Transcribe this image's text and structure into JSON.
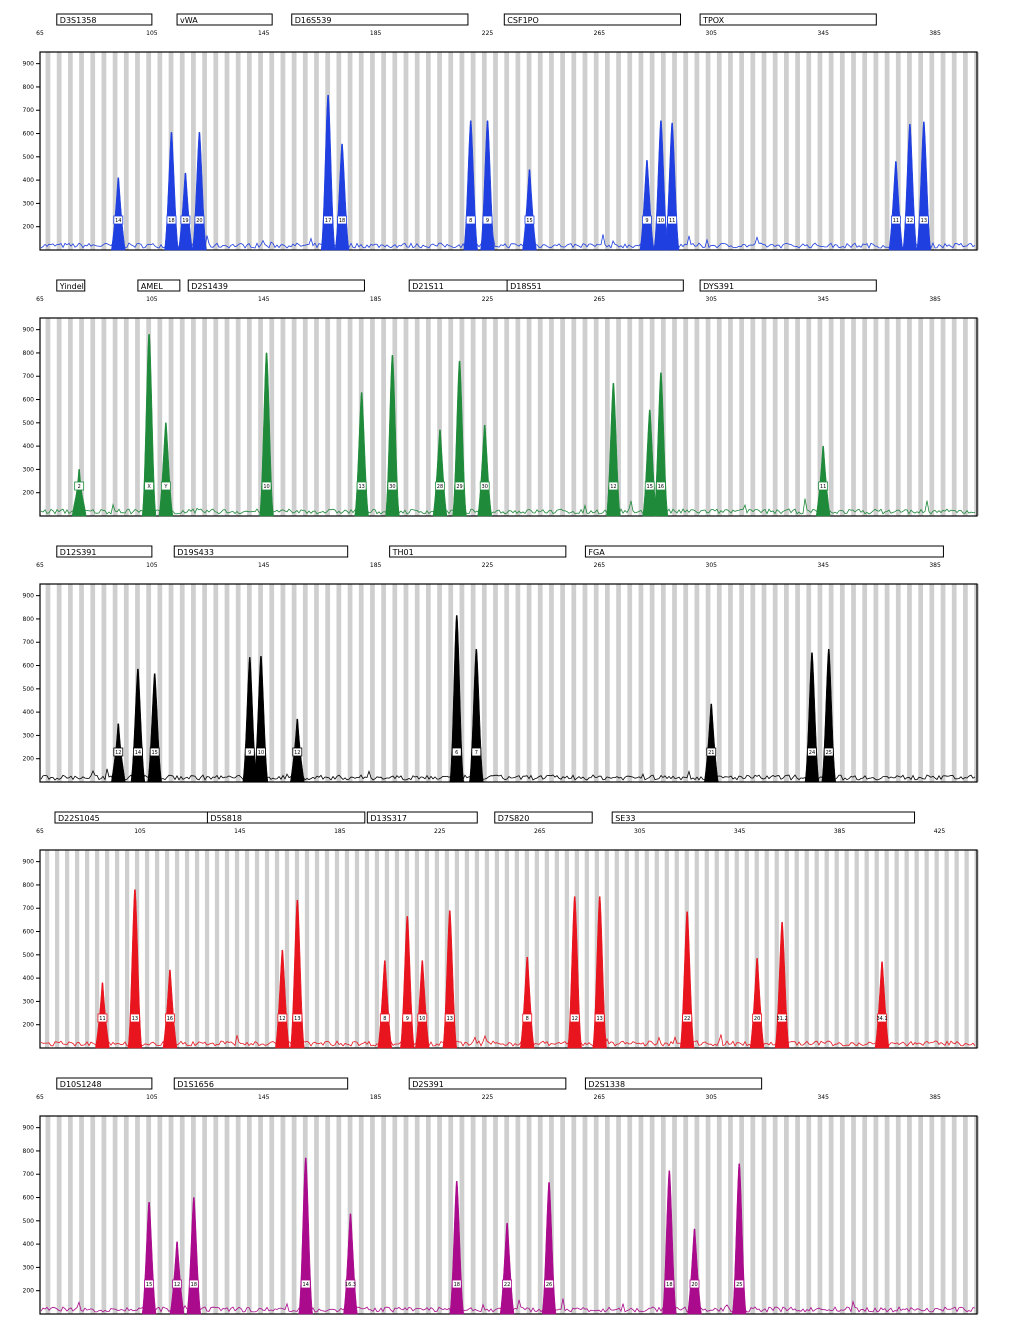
{
  "chart_data": [
    {
      "type": "area",
      "color": "#1f3fe0",
      "x_ticks": [
        65,
        105,
        145,
        185,
        225,
        265,
        305,
        345,
        385
      ],
      "y_ticks": [
        200,
        300,
        400,
        500,
        600,
        700,
        800,
        900
      ],
      "xlim": [
        65,
        400
      ],
      "ylim": [
        100,
        950
      ],
      "loci": [
        {
          "name": "D3S1358",
          "start": 71,
          "end": 105
        },
        {
          "name": "vWA",
          "start": 114,
          "end": 148
        },
        {
          "name": "D16S539",
          "start": 155,
          "end": 218
        },
        {
          "name": "CSF1PO",
          "start": 231,
          "end": 294
        },
        {
          "name": "TPOX",
          "start": 301,
          "end": 364
        }
      ],
      "peaks": [
        {
          "x": 93,
          "height": 410,
          "allele": "14"
        },
        {
          "x": 112,
          "height": 605,
          "allele": "18"
        },
        {
          "x": 117,
          "height": 430,
          "allele": "19"
        },
        {
          "x": 122,
          "height": 605,
          "allele": "20"
        },
        {
          "x": 168,
          "height": 765,
          "allele": "17"
        },
        {
          "x": 173,
          "height": 555,
          "allele": "18"
        },
        {
          "x": 219,
          "height": 655,
          "allele": "8"
        },
        {
          "x": 225,
          "height": 655,
          "allele": "9"
        },
        {
          "x": 240,
          "height": 445,
          "allele": "15"
        },
        {
          "x": 282,
          "height": 485,
          "allele": "9"
        },
        {
          "x": 287,
          "height": 655,
          "allele": "10"
        },
        {
          "x": 291,
          "height": 645,
          "allele": "11"
        },
        {
          "x": 371,
          "height": 480,
          "allele": "11"
        },
        {
          "x": 376,
          "height": 640,
          "allele": "12"
        },
        {
          "x": 381,
          "height": 650,
          "allele": "13"
        }
      ]
    },
    {
      "type": "area",
      "color": "#1e8a3a",
      "x_ticks": [
        65,
        105,
        145,
        185,
        225,
        265,
        305,
        345,
        385
      ],
      "y_ticks": [
        200,
        300,
        400,
        500,
        600,
        700,
        800,
        900
      ],
      "xlim": [
        65,
        400
      ],
      "ylim": [
        100,
        950
      ],
      "loci": [
        {
          "name": "Yindel",
          "start": 71,
          "end": 81
        },
        {
          "name": "AMEL",
          "start": 100,
          "end": 115
        },
        {
          "name": "D2S1439",
          "start": 118,
          "end": 181
        },
        {
          "name": "D21S11",
          "start": 197,
          "end": 235
        },
        {
          "name": "D18S51",
          "start": 232,
          "end": 295
        },
        {
          "name": "DYS391",
          "start": 301,
          "end": 364
        }
      ],
      "peaks": [
        {
          "x": 79,
          "height": 300,
          "allele": "2"
        },
        {
          "x": 104,
          "height": 880,
          "allele": "X"
        },
        {
          "x": 110,
          "height": 500,
          "allele": "Y"
        },
        {
          "x": 146,
          "height": 800,
          "allele": "10"
        },
        {
          "x": 180,
          "height": 630,
          "allele": "13"
        },
        {
          "x": 191,
          "height": 790,
          "allele": "30"
        },
        {
          "x": 208,
          "height": 470,
          "allele": "28"
        },
        {
          "x": 215,
          "height": 765,
          "allele": "29"
        },
        {
          "x": 224,
          "height": 490,
          "allele": "30"
        },
        {
          "x": 270,
          "height": 670,
          "allele": "12"
        },
        {
          "x": 283,
          "height": 555,
          "allele": "15"
        },
        {
          "x": 287,
          "height": 715,
          "allele": "16"
        },
        {
          "x": 345,
          "height": 400,
          "allele": "11"
        }
      ]
    },
    {
      "type": "area",
      "color": "#000000",
      "x_ticks": [
        65,
        105,
        145,
        185,
        225,
        265,
        305,
        345,
        385
      ],
      "y_ticks": [
        200,
        300,
        400,
        500,
        600,
        700,
        800,
        900
      ],
      "xlim": [
        65,
        400
      ],
      "ylim": [
        100,
        950
      ],
      "loci": [
        {
          "name": "D12S391",
          "start": 71,
          "end": 105
        },
        {
          "name": "D19S433",
          "start": 113,
          "end": 175
        },
        {
          "name": "TH01",
          "start": 190,
          "end": 253
        },
        {
          "name": "FGA",
          "start": 260,
          "end": 388
        }
      ],
      "peaks": [
        {
          "x": 93,
          "height": 350,
          "allele": "12"
        },
        {
          "x": 100,
          "height": 585,
          "allele": "14"
        },
        {
          "x": 106,
          "height": 565,
          "allele": "15"
        },
        {
          "x": 140,
          "height": 635,
          "allele": "9"
        },
        {
          "x": 144,
          "height": 640,
          "allele": "10"
        },
        {
          "x": 157,
          "height": 370,
          "allele": "12"
        },
        {
          "x": 214,
          "height": 815,
          "allele": "6"
        },
        {
          "x": 221,
          "height": 670,
          "allele": "7"
        },
        {
          "x": 305,
          "height": 435,
          "allele": "21"
        },
        {
          "x": 341,
          "height": 655,
          "allele": "24"
        },
        {
          "x": 347,
          "height": 670,
          "allele": "25"
        }
      ]
    },
    {
      "type": "area",
      "color": "#e8141e",
      "x_ticks": [
        65,
        105,
        145,
        185,
        225,
        265,
        305,
        345,
        385,
        425
      ],
      "y_ticks": [
        200,
        300,
        400,
        500,
        600,
        700,
        800,
        900
      ],
      "xlim": [
        65,
        440
      ],
      "ylim": [
        100,
        950
      ],
      "loci": [
        {
          "name": "D22S1045",
          "start": 71,
          "end": 135
        },
        {
          "name": "D5S818",
          "start": 132,
          "end": 195
        },
        {
          "name": "D13S317",
          "start": 196,
          "end": 240
        },
        {
          "name": "D7S820",
          "start": 247,
          "end": 286
        },
        {
          "name": "SE33",
          "start": 294,
          "end": 415
        }
      ],
      "peaks": [
        {
          "x": 90,
          "height": 380,
          "allele": "11"
        },
        {
          "x": 103,
          "height": 780,
          "allele": "13"
        },
        {
          "x": 117,
          "height": 435,
          "allele": "16"
        },
        {
          "x": 162,
          "height": 520,
          "allele": "12"
        },
        {
          "x": 168,
          "height": 735,
          "allele": "13"
        },
        {
          "x": 203,
          "height": 475,
          "allele": "8"
        },
        {
          "x": 212,
          "height": 665,
          "allele": "9"
        },
        {
          "x": 218,
          "height": 475,
          "allele": "10"
        },
        {
          "x": 229,
          "height": 690,
          "allele": "13"
        },
        {
          "x": 260,
          "height": 490,
          "allele": "8"
        },
        {
          "x": 279,
          "height": 750,
          "allele": "12"
        },
        {
          "x": 289,
          "height": 750,
          "allele": "13"
        },
        {
          "x": 324,
          "height": 685,
          "allele": "22"
        },
        {
          "x": 352,
          "height": 485,
          "allele": "20"
        },
        {
          "x": 362,
          "height": 640,
          "allele": "31.2"
        },
        {
          "x": 402,
          "height": 470,
          "allele": "34.1"
        }
      ]
    },
    {
      "type": "area",
      "color": "#aa0a8c",
      "x_ticks": [
        65,
        105,
        145,
        185,
        225,
        265,
        305,
        345,
        385
      ],
      "y_ticks": [
        200,
        300,
        400,
        500,
        600,
        700,
        800,
        900
      ],
      "xlim": [
        65,
        400
      ],
      "ylim": [
        100,
        950
      ],
      "loci": [
        {
          "name": "D10S1248",
          "start": 71,
          "end": 105
        },
        {
          "name": "D1S1656",
          "start": 113,
          "end": 175
        },
        {
          "name": "D2S391",
          "start": 197,
          "end": 253
        },
        {
          "name": "D2S1338",
          "start": 260,
          "end": 323
        }
      ],
      "peaks": [
        {
          "x": 104,
          "height": 580,
          "allele": "15"
        },
        {
          "x": 114,
          "height": 410,
          "allele": "12"
        },
        {
          "x": 120,
          "height": 600,
          "allele": "18"
        },
        {
          "x": 160,
          "height": 770,
          "allele": "14"
        },
        {
          "x": 176,
          "height": 530,
          "allele": "16.3"
        },
        {
          "x": 214,
          "height": 670,
          "allele": "18"
        },
        {
          "x": 232,
          "height": 490,
          "allele": "22"
        },
        {
          "x": 247,
          "height": 665,
          "allele": "26"
        },
        {
          "x": 290,
          "height": 715,
          "allele": "18"
        },
        {
          "x": 299,
          "height": 465,
          "allele": "20"
        },
        {
          "x": 315,
          "height": 745,
          "allele": "25"
        }
      ]
    }
  ]
}
